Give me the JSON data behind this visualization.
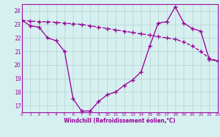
{
  "line1_x": [
    0,
    1,
    2,
    3,
    4,
    5,
    6,
    7,
    8,
    9,
    10,
    11,
    12,
    13,
    14,
    15,
    16,
    17,
    18,
    19,
    20,
    21,
    22,
    23
  ],
  "line1_y": [
    23.3,
    23.25,
    23.2,
    23.2,
    23.15,
    23.1,
    23.05,
    23.0,
    22.9,
    22.8,
    22.7,
    22.6,
    22.5,
    22.4,
    22.3,
    22.2,
    22.1,
    22.0,
    21.9,
    21.7,
    21.4,
    21.0,
    20.5,
    20.3
  ],
  "line2_x": [
    0,
    1,
    2,
    3,
    4,
    5,
    6,
    7,
    8,
    9,
    10,
    11,
    12,
    13,
    14,
    15,
    16,
    17,
    18,
    19,
    20,
    21,
    22,
    23
  ],
  "line2_y": [
    23.3,
    22.9,
    22.8,
    22.0,
    21.8,
    21.0,
    17.5,
    16.6,
    16.6,
    17.3,
    17.8,
    18.0,
    18.5,
    18.9,
    19.5,
    21.4,
    23.1,
    23.2,
    24.3,
    23.1,
    22.7,
    22.5,
    20.4,
    20.3
  ],
  "color": "#990099",
  "background": "#d6f0f0",
  "grid_color": "#b8d4d4",
  "xlabel": "Windchill (Refroidissement éolien,°C)",
  "ylim": [
    16.5,
    24.5
  ],
  "xlim": [
    0,
    23
  ],
  "yticks": [
    17,
    18,
    19,
    20,
    21,
    22,
    23,
    24
  ],
  "xticks": [
    0,
    1,
    2,
    3,
    4,
    5,
    6,
    7,
    8,
    9,
    10,
    11,
    12,
    13,
    14,
    15,
    16,
    17,
    18,
    19,
    20,
    21,
    22,
    23
  ],
  "marker": "+",
  "marker_size": 4,
  "line_width": 1.0
}
